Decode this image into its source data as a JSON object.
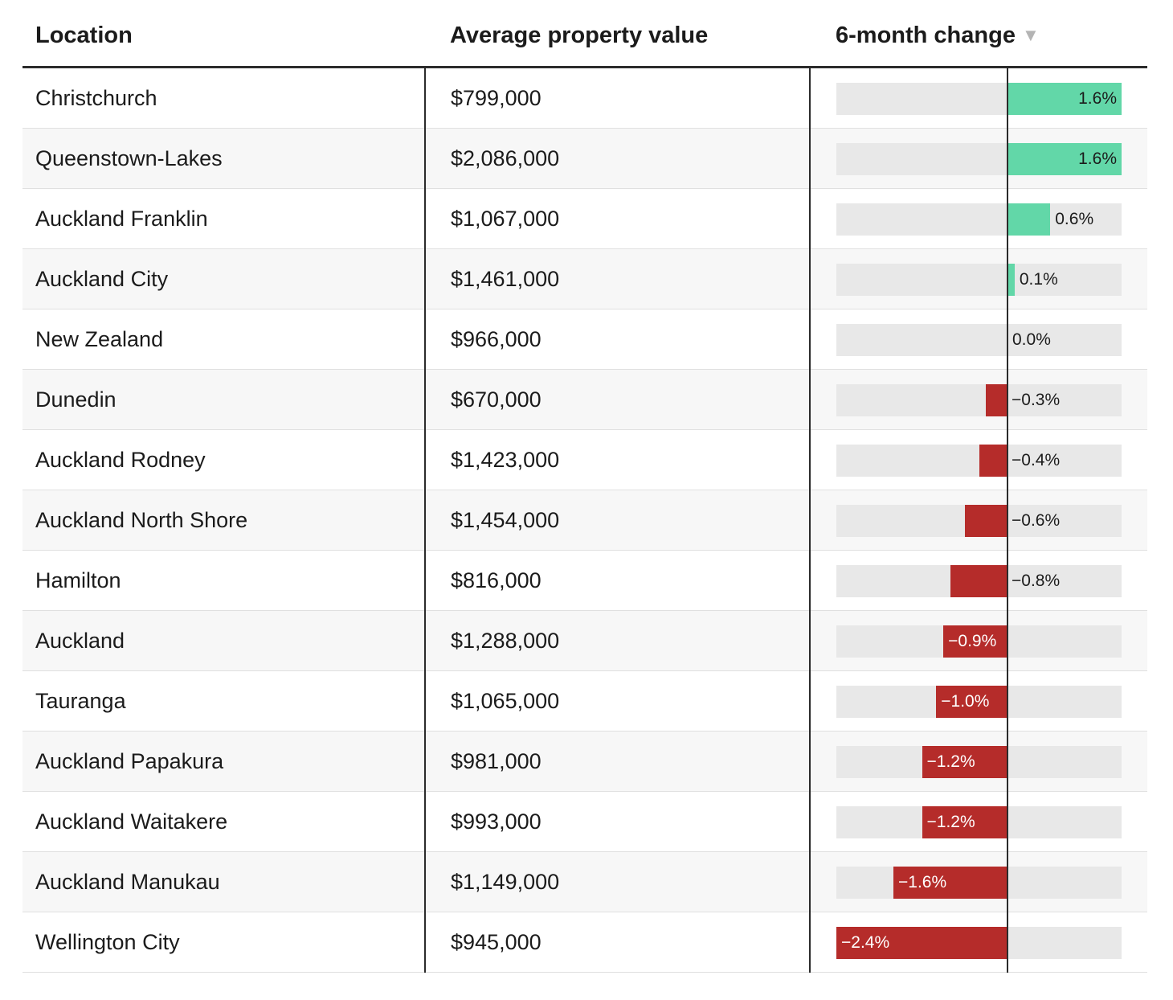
{
  "header": {
    "location": "Location",
    "value": "Average property value",
    "change": "6-month change",
    "sort_icon": "sort-desc-icon"
  },
  "colors": {
    "positive": "#62d7a8",
    "negative": "#b52c2a",
    "track": "#e8e8e8"
  },
  "chart_data": {
    "type": "table",
    "columns": [
      "Location",
      "Average property value",
      "6-month change"
    ],
    "axis_range": [
      -2.4,
      1.6
    ],
    "rows": [
      {
        "location": "Christchurch",
        "value": "$799,000",
        "change": 1.6,
        "label": "1.6%"
      },
      {
        "location": "Queenstown-Lakes",
        "value": "$2,086,000",
        "change": 1.6,
        "label": "1.6%"
      },
      {
        "location": "Auckland Franklin",
        "value": "$1,067,000",
        "change": 0.6,
        "label": "0.6%"
      },
      {
        "location": "Auckland City",
        "value": "$1,461,000",
        "change": 0.1,
        "label": "0.1%"
      },
      {
        "location": "New Zealand",
        "value": "$966,000",
        "change": 0.0,
        "label": "0.0%"
      },
      {
        "location": "Dunedin",
        "value": "$670,000",
        "change": -0.3,
        "label": "−0.3%"
      },
      {
        "location": "Auckland Rodney",
        "value": "$1,423,000",
        "change": -0.4,
        "label": "−0.4%"
      },
      {
        "location": "Auckland North Shore",
        "value": "$1,454,000",
        "change": -0.6,
        "label": "−0.6%"
      },
      {
        "location": "Hamilton",
        "value": "$816,000",
        "change": -0.8,
        "label": "−0.8%"
      },
      {
        "location": "Auckland",
        "value": "$1,288,000",
        "change": -0.9,
        "label": "−0.9%"
      },
      {
        "location": "Tauranga",
        "value": "$1,065,000",
        "change": -1.0,
        "label": "−1.0%"
      },
      {
        "location": "Auckland Papakura",
        "value": "$981,000",
        "change": -1.2,
        "label": "−1.2%"
      },
      {
        "location": "Auckland Waitakere",
        "value": "$993,000",
        "change": -1.2,
        "label": "−1.2%"
      },
      {
        "location": "Auckland Manukau",
        "value": "$1,149,000",
        "change": -1.6,
        "label": "−1.6%"
      },
      {
        "location": "Wellington City",
        "value": "$945,000",
        "change": -2.4,
        "label": "−2.4%"
      }
    ]
  }
}
